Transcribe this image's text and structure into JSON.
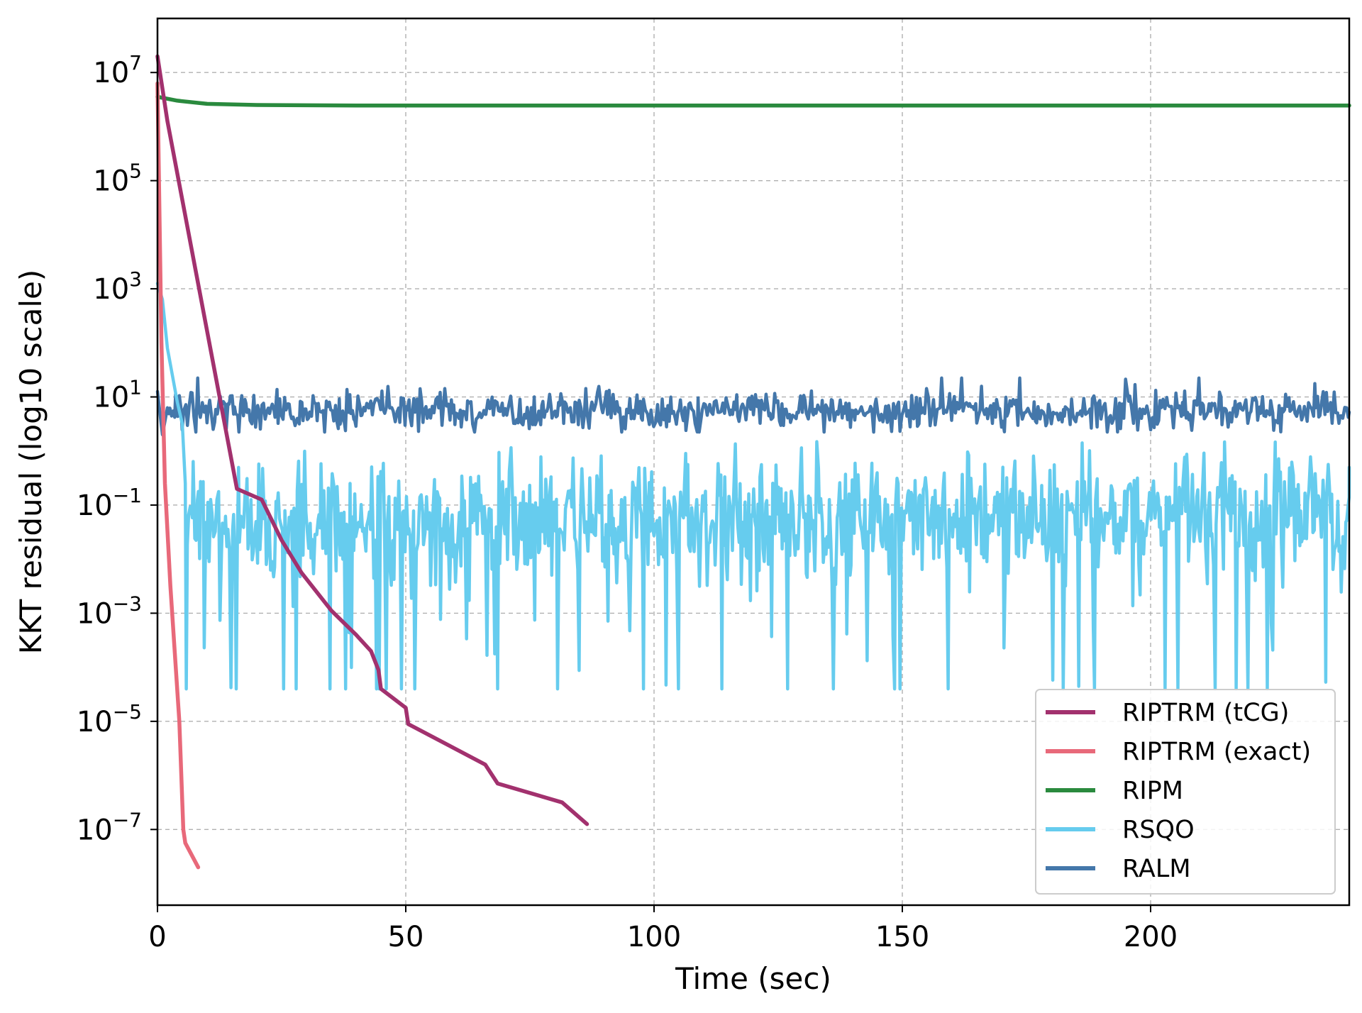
{
  "chart_data": {
    "type": "line",
    "xlabel": "Time (sec)",
    "ylabel": "KKT residual (log10 scale)",
    "xlim": [
      0,
      240
    ],
    "ylim_log10": [
      -8.4,
      8.0
    ],
    "grid": true,
    "legend_position": "bottom-right",
    "x_ticks": [
      {
        "value": 0,
        "label": "0"
      },
      {
        "value": 50,
        "label": "50"
      },
      {
        "value": 100,
        "label": "100"
      },
      {
        "value": 150,
        "label": "150"
      },
      {
        "value": 200,
        "label": "200"
      }
    ],
    "y_ticks": [
      {
        "log10": 7,
        "base": "10",
        "exp": "7"
      },
      {
        "log10": 5,
        "base": "10",
        "exp": "5"
      },
      {
        "log10": 3,
        "base": "10",
        "exp": "3"
      },
      {
        "log10": 1,
        "base": "10",
        "exp": "1"
      },
      {
        "log10": -1,
        "base": "10",
        "exp": "−1"
      },
      {
        "log10": -3,
        "base": "10",
        "exp": "−3"
      },
      {
        "log10": -5,
        "base": "10",
        "exp": "−5"
      },
      {
        "log10": -7,
        "base": "10",
        "exp": "−7"
      }
    ],
    "series": [
      {
        "name": "RIPTRM (tCG)",
        "color": "#a2316e",
        "kind": "points",
        "x": [
          0,
          2,
          16,
          21,
          25,
          29,
          35,
          40,
          43,
          44.5,
          45,
          50,
          50.5,
          66,
          68.5,
          81.5,
          86.5
        ],
        "log10_y": [
          7.3,
          6.1,
          -0.7,
          -0.9,
          -1.65,
          -2.25,
          -2.95,
          -3.4,
          -3.7,
          -4.05,
          -4.4,
          -4.75,
          -5.05,
          -5.8,
          -6.15,
          -6.5,
          -6.9
        ]
      },
      {
        "name": "RIPTRM (exact)",
        "color": "#e8697a",
        "kind": "points",
        "x": [
          0,
          0.8,
          1.5,
          2.6,
          4.4,
          5.2,
          5.6,
          8.2
        ],
        "log10_y": [
          6.8,
          2.0,
          -0.6,
          -2.5,
          -5.0,
          -7.0,
          -7.25,
          -7.7
        ]
      },
      {
        "name": "RIPM",
        "color": "#2a8a3e",
        "kind": "points",
        "x": [
          0,
          4,
          10,
          20,
          40,
          240
        ],
        "log10_y": [
          6.55,
          6.48,
          6.42,
          6.4,
          6.39,
          6.39
        ]
      },
      {
        "name": "RSQO",
        "color": "#66ccee",
        "kind": "noise",
        "seed": 7,
        "start_x": 0,
        "end_x": 240,
        "step": 0.25,
        "lead_in": {
          "x": [
            0,
            1,
            2,
            3,
            4,
            5,
            5.6
          ],
          "log10_y": [
            3.1,
            2.8,
            1.9,
            1.4,
            0.9,
            0.5,
            -0.6
          ]
        },
        "center_log10": -1.3,
        "spread": 0.55,
        "min_log10": -4.4,
        "max_log10": 0.2,
        "dip_probability": 0.06,
        "spike_probability": 0.04
      },
      {
        "name": "RALM",
        "color": "#4477aa",
        "kind": "noise",
        "seed": 13,
        "start_x": 0,
        "end_x": 240,
        "step": 0.3,
        "lead_in": {
          "x": [
            0,
            1,
            2
          ],
          "log10_y": [
            1.1,
            0.3,
            0.8
          ]
        },
        "center_log10": 0.75,
        "spread": 0.18,
        "min_log10": 0.35,
        "max_log10": 1.35,
        "dip_probability": 0.0,
        "spike_probability": 0.01
      }
    ]
  }
}
